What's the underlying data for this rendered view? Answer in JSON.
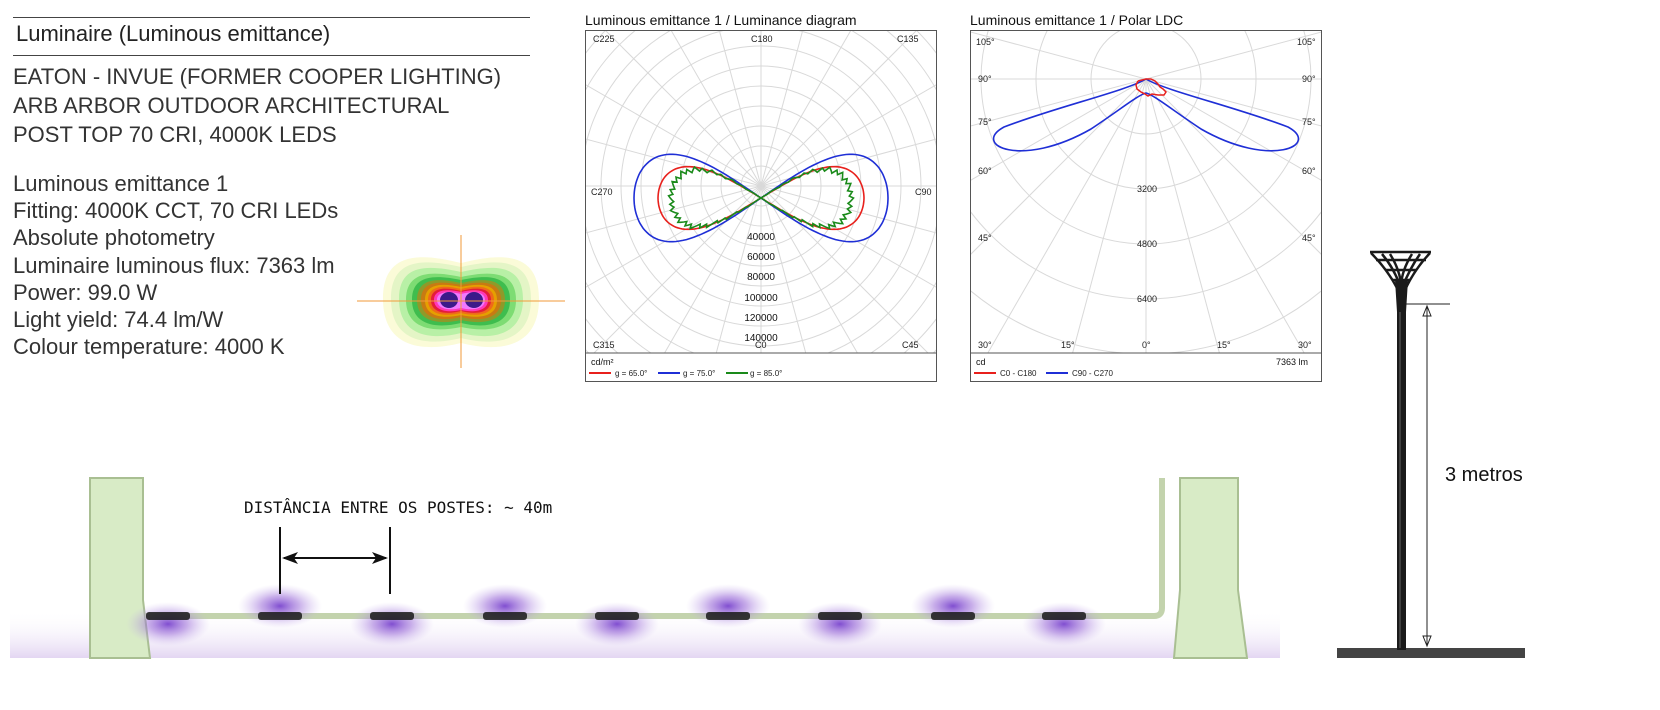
{
  "header": {
    "title": "Luminaire (Luminous emittance)"
  },
  "product": {
    "lines": [
      "EATON - INVUE (FORMER COOPER LIGHTING)",
      "ARB ARBOR OUTDOOR ARCHITECTURAL",
      "POST TOP 70 CRI, 4000K LEDS"
    ]
  },
  "specs": {
    "lines": [
      "Luminous emittance 1",
      "Fitting: 4000K CCT, 70 CRI LEDs",
      "Absolute photometry",
      "Luminaire luminous flux: 7363 lm",
      "Power: 99.0 W",
      "Light yield: 74.4 lm/W",
      "Colour temperature: 4000 K"
    ]
  },
  "chart_data": [
    {
      "type": "polar",
      "title": "Luminous emittance 1 / Luminance diagram",
      "unit": "cd/m²",
      "plane_labels": [
        "C225",
        "C180",
        "C135",
        "C270",
        "C90",
        "C315",
        "C0",
        "C45"
      ],
      "radial_ticks": [
        "40000",
        "60000",
        "80000",
        "100000",
        "120000",
        "140000"
      ],
      "series": [
        {
          "name": "g = 65.0°",
          "color": "#e8201c"
        },
        {
          "name": "g = 75.0°",
          "color": "#1f2fd6"
        },
        {
          "name": "g = 85.0°",
          "color": "#1a8a1a"
        }
      ]
    },
    {
      "type": "polar",
      "title": "Luminous emittance 1 / Polar LDC",
      "unit": "cd",
      "flux_label": "7363 lm",
      "angle_labels_left": [
        "105°",
        "90°",
        "75°",
        "60°",
        "45°"
      ],
      "angle_labels_right": [
        "105°",
        "90°",
        "75°",
        "60°",
        "45°"
      ],
      "bottom_labels": [
        "30°",
        "15°",
        "0°",
        "15°",
        "30°"
      ],
      "radial_ticks": [
        "3200",
        "4800",
        "6400"
      ],
      "series": [
        {
          "name": "C0 - C180",
          "color": "#e8201c"
        },
        {
          "name": "C90 - C270",
          "color": "#1f2fd6"
        }
      ]
    }
  ],
  "scene": {
    "distance_label": "DISTÂNCIA ENTRE OS POSTES: ~ 40m",
    "pole_height_label": "3 metros"
  },
  "colors": {
    "road": "#c3d3ad",
    "road_shadow": "#a9bf92",
    "glow": "#9a6ad8",
    "ground": "#e8def2",
    "pole": "#1a1a1a"
  }
}
